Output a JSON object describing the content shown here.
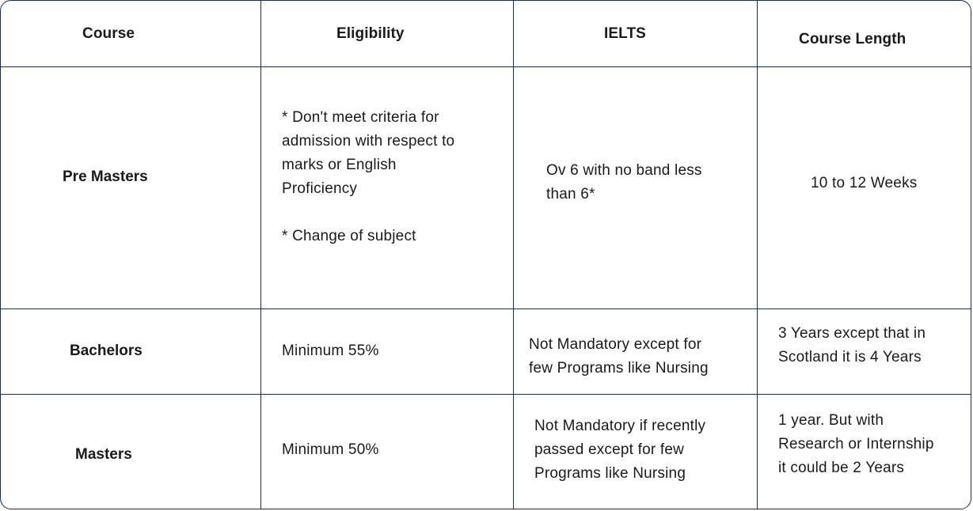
{
  "header": {
    "course": "Course",
    "eligibility": "Eligibility",
    "ielts": "IELTS",
    "course_length": "Course Length"
  },
  "rows": [
    {
      "course": "Pre Masters",
      "eligibility_line1": "* Don't meet criteria for",
      "eligibility_line2": "admission with respect to",
      "eligibility_line3": "marks or  English",
      "eligibility_line4": "Proficiency",
      "eligibility_line5": "* Change of subject",
      "ielts_line1": "Ov 6 with no band less",
      "ielts_line2": "than 6*",
      "length_line1": "10 to 12 Weeks"
    },
    {
      "course": "Bachelors",
      "eligibility_line1": "Minimum 55%",
      "ielts_line1": "Not Mandatory except for",
      "ielts_line2": "few Programs like Nursing",
      "length_line1": "3 Years except that in",
      "length_line2": "Scotland it is 4 Years"
    },
    {
      "course": "Masters",
      "eligibility_line1": "Minimum 50%",
      "ielts_line1": "Not Mandatory if recently",
      "ielts_line2": "passed except for few",
      "ielts_line3": "Programs like Nursing",
      "length_line1": "1 year. But with",
      "length_line2": "Research or Internship",
      "length_line3": "it could be 2 Years"
    }
  ]
}
